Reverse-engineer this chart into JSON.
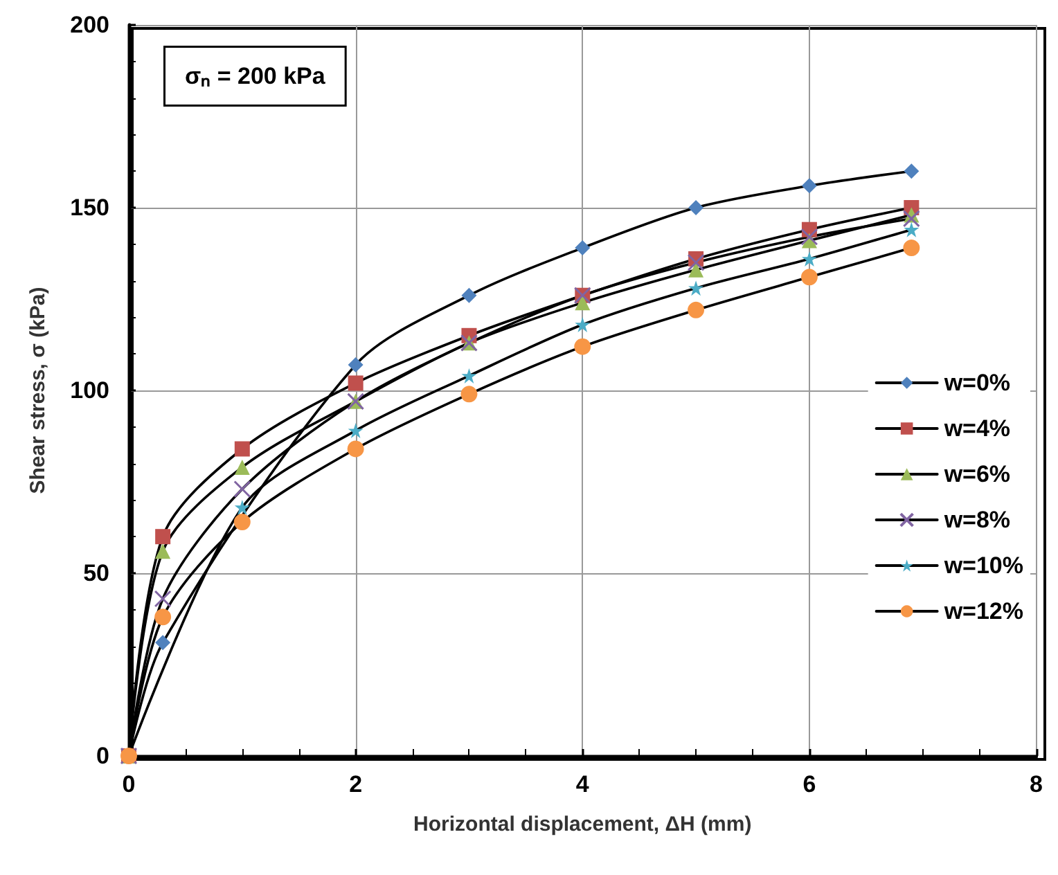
{
  "chart_data": {
    "type": "line",
    "xlabel": "Horizontal displacement, ΔH (mm)",
    "ylabel": "Shear stress, σ (kPa)",
    "annotations": [
      "σₙ = 200 kPa"
    ],
    "x": [
      0,
      0.3,
      1,
      2,
      3,
      4,
      5,
      6,
      6.9
    ],
    "series": [
      {
        "name": "w=0%",
        "color": "#4f81bd",
        "marker": "diamond",
        "values": [
          0,
          31,
          null,
          107,
          126,
          139,
          150,
          156,
          160
        ]
      },
      {
        "name": "w=4%",
        "color": "#c0504d",
        "marker": "square",
        "values": [
          0,
          60,
          84,
          102,
          115,
          126,
          136,
          144,
          150
        ]
      },
      {
        "name": "w=6%",
        "color": "#9bbb59",
        "marker": "triangle",
        "values": [
          0,
          56,
          79,
          97,
          113,
          124,
          133,
          141,
          148
        ]
      },
      {
        "name": "w=8%",
        "color": "#8064a2",
        "marker": "cross",
        "values": [
          0,
          43,
          73,
          97,
          113,
          126,
          135,
          142,
          147
        ]
      },
      {
        "name": "w=10%",
        "color": "#4bacc6",
        "marker": "star",
        "values": [
          0,
          null,
          68,
          89,
          104,
          118,
          128,
          136,
          144
        ]
      },
      {
        "name": "w=12%",
        "color": "#f79646",
        "marker": "circle",
        "values": [
          0,
          38,
          64,
          84,
          99,
          112,
          122,
          131,
          139
        ]
      }
    ],
    "xlim": [
      0,
      8
    ],
    "xticks": [
      0,
      2,
      4,
      6,
      8
    ],
    "ylim": [
      0,
      200
    ],
    "yticks": [
      0,
      50,
      100,
      150,
      200
    ],
    "grid": true,
    "legend": "right",
    "line_style": "solid"
  }
}
